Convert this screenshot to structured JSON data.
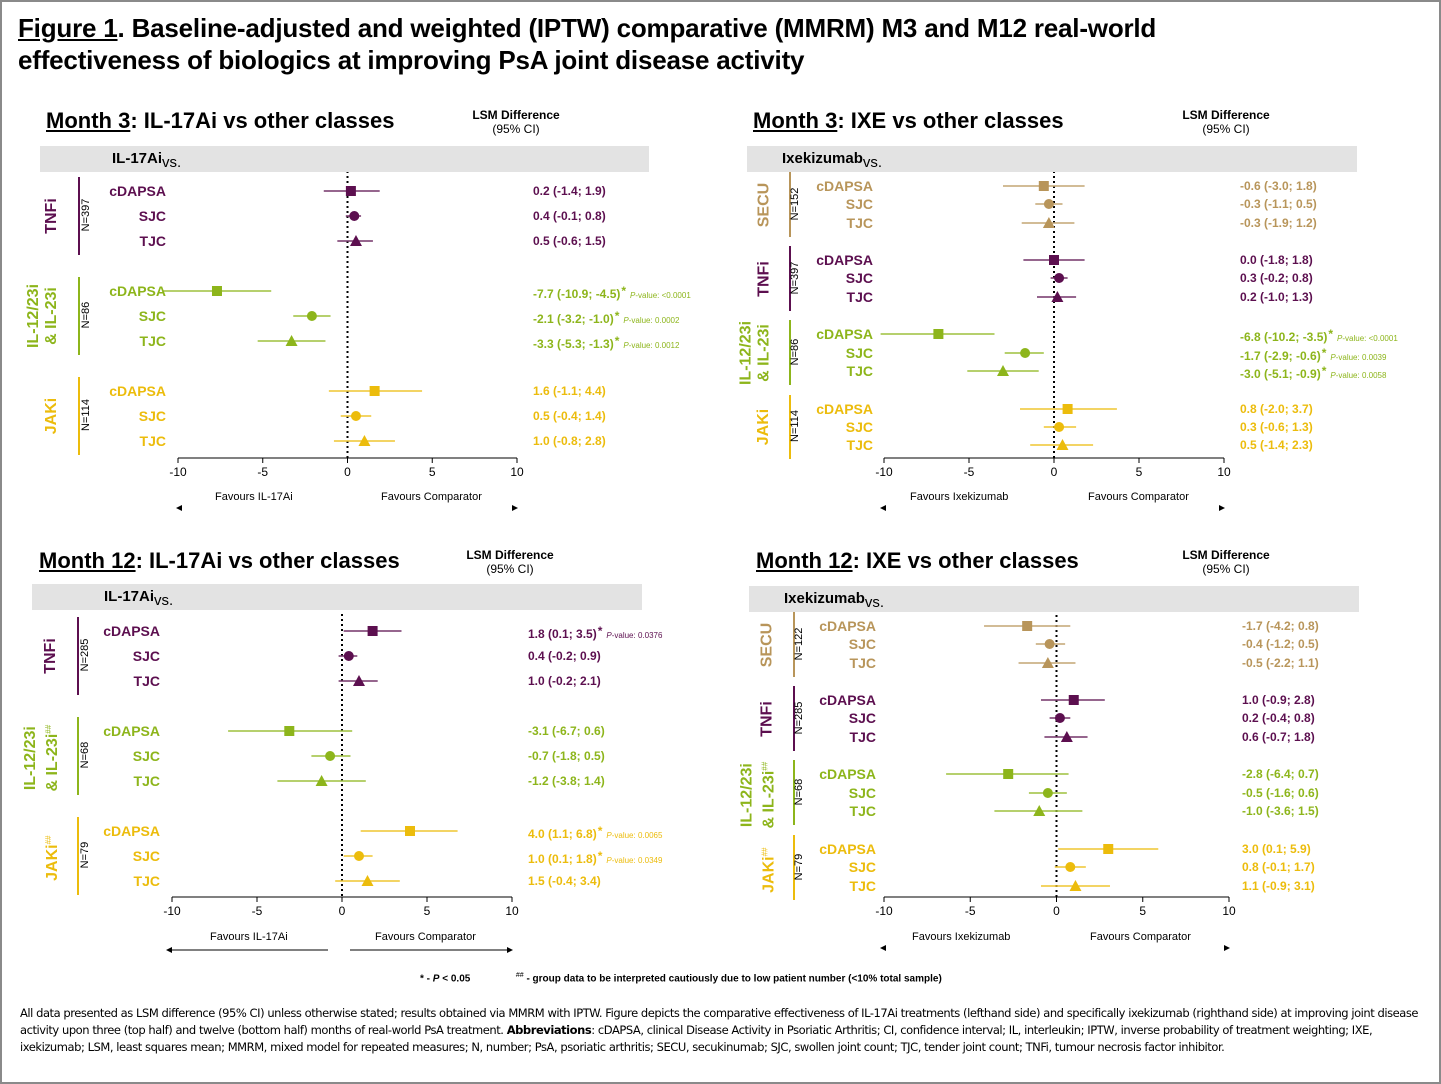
{
  "figure": {
    "label": "Figure 1",
    "title_line1": ". Baseline-adjusted and weighted (IPTW) comparative (MMRM) M3 and M12 real-world",
    "title_line2": "effectiveness of biologics at improving PsA joint disease activity"
  },
  "colors": {
    "TNFi": "#5c0f4f",
    "IL": "#8db51b",
    "JAKi": "#ecbc0c",
    "SECU": "#b8955a",
    "gray_bar": "#e3e3e3"
  },
  "lsm_header": {
    "line1": "LSM Difference",
    "line2": "(95% CI)"
  },
  "footnotes": {
    "significance": "* - ",
    "significance_p": "P",
    "significance_rest": " < 0.05",
    "caution": "##",
    "caution_text": " - group data to be interpreted cautiously due to low patient number (<10% total sample)"
  },
  "caption": {
    "part1": "All data presented as LSM difference (95% CI) unless otherwise stated; results obtained via MMRM with IPTW. Figure depicts the comparative effectiveness of IL-17Ai treatments (lefthand side) and specifically ixekizumab (righthand side) at improving joint disease activity upon three (top half) and twelve (bottom half) months of real-world PsA treatment. ",
    "abbrev_label": "Abbreviations",
    "part2": ": cDAPSA, clinical Disease Activity in Psoriatic Arthritis; CI, confidence interval; IL, interleukin; IPTW, inverse probability of treatment weighting; IXE, ixekizumab; LSM, least squares mean; MMRM, mixed model for repeated measures; N, number; PsA, psoriatic arthritis; SECU, secukinumab; SJC, swollen joint count; TJC, tender joint count; TNFi, tumour necrosis factor inhibitor."
  },
  "chart_data": [
    {
      "type": "forest",
      "title_month": "Month 3",
      "title_rest": ": IL-17Ai vs other classes",
      "reference_label_bold": "IL-17Ai",
      "reference_label_rest": " vs.",
      "xlim": [
        -10,
        10
      ],
      "xticks": [
        "-10",
        "-5",
        "0",
        "5",
        "10"
      ],
      "reference_line": 0,
      "favours_left": "Favours IL-17Ai",
      "favours_right": "Favours Comparator",
      "groups": [
        {
          "name": "TNFi",
          "n": "N=397",
          "color_key": "TNFi",
          "caution": false,
          "rows": [
            {
              "label": "cDAPSA",
              "marker": "square",
              "est": 0.2,
              "lo": -1.4,
              "hi": 1.9,
              "text": "0.2 (-1.4; 1.9)",
              "sig": false,
              "p": ""
            },
            {
              "label": "SJC",
              "marker": "circle",
              "est": 0.4,
              "lo": -0.1,
              "hi": 0.8,
              "text": "0.4 (-0.1; 0.8)",
              "sig": false,
              "p": ""
            },
            {
              "label": "TJC",
              "marker": "triangle",
              "est": 0.5,
              "lo": -0.6,
              "hi": 1.5,
              "text": "0.5 (-0.6; 1.5)",
              "sig": false,
              "p": ""
            }
          ]
        },
        {
          "name": "IL-12/23i\n& IL-23i",
          "n": "N=86",
          "color_key": "IL",
          "caution": false,
          "rows": [
            {
              "label": "cDAPSA",
              "marker": "square",
              "est": -7.7,
              "lo": -10.9,
              "hi": -4.5,
              "text": "-7.7 (-10.9; -4.5)",
              "sig": true,
              "p": "<0.0001"
            },
            {
              "label": "SJC",
              "marker": "circle",
              "est": -2.1,
              "lo": -3.2,
              "hi": -1.0,
              "text": "-2.1 (-3.2; -1.0)",
              "sig": true,
              "p": "0.0002"
            },
            {
              "label": "TJC",
              "marker": "triangle",
              "est": -3.3,
              "lo": -5.3,
              "hi": -1.3,
              "text": "-3.3 (-5.3; -1.3)",
              "sig": true,
              "p": "0.0012"
            }
          ]
        },
        {
          "name": "JAKi",
          "n": "N=114",
          "color_key": "JAKi",
          "caution": false,
          "rows": [
            {
              "label": "cDAPSA",
              "marker": "square",
              "est": 1.6,
              "lo": -1.1,
              "hi": 4.4,
              "text": "1.6 (-1.1; 4.4)",
              "sig": false,
              "p": ""
            },
            {
              "label": "SJC",
              "marker": "circle",
              "est": 0.5,
              "lo": -0.4,
              "hi": 1.4,
              "text": "0.5 (-0.4; 1.4)",
              "sig": false,
              "p": ""
            },
            {
              "label": "TJC",
              "marker": "triangle",
              "est": 1.0,
              "lo": -0.8,
              "hi": 2.8,
              "text": "1.0 (-0.8; 2.8)",
              "sig": false,
              "p": ""
            }
          ]
        }
      ]
    },
    {
      "type": "forest",
      "title_month": "Month 3",
      "title_rest": ": IXE vs other classes",
      "reference_label_bold": "Ixekizumab",
      "reference_label_rest": " vs.",
      "xlim": [
        -10,
        10
      ],
      "xticks": [
        "-10",
        "-5",
        "0",
        "5",
        "10"
      ],
      "reference_line": 0,
      "favours_left": "Favours Ixekizumab",
      "favours_right": "Favours Comparator",
      "groups": [
        {
          "name": "SECU",
          "n": "N=152",
          "color_key": "SECU",
          "caution": false,
          "rows": [
            {
              "label": "cDAPSA",
              "marker": "square",
              "est": -0.6,
              "lo": -3.0,
              "hi": 1.8,
              "text": "-0.6 (-3.0; 1.8)",
              "sig": false,
              "p": ""
            },
            {
              "label": "SJC",
              "marker": "circle",
              "est": -0.3,
              "lo": -1.1,
              "hi": 0.5,
              "text": "-0.3 (-1.1; 0.5)",
              "sig": false,
              "p": ""
            },
            {
              "label": "TJC",
              "marker": "triangle",
              "est": -0.3,
              "lo": -1.9,
              "hi": 1.2,
              "text": "-0.3 (-1.9; 1.2)",
              "sig": false,
              "p": ""
            }
          ]
        },
        {
          "name": "TNFi",
          "n": "N=397",
          "color_key": "TNFi",
          "caution": false,
          "rows": [
            {
              "label": "cDAPSA",
              "marker": "square",
              "est": 0.0,
              "lo": -1.8,
              "hi": 1.8,
              "text": "0.0 (-1.8; 1.8)",
              "sig": false,
              "p": ""
            },
            {
              "label": "SJC",
              "marker": "circle",
              "est": 0.3,
              "lo": -0.2,
              "hi": 0.8,
              "text": "0.3 (-0.2; 0.8)",
              "sig": false,
              "p": ""
            },
            {
              "label": "TJC",
              "marker": "triangle",
              "est": 0.2,
              "lo": -1.0,
              "hi": 1.3,
              "text": "0.2 (-1.0; 1.3)",
              "sig": false,
              "p": ""
            }
          ]
        },
        {
          "name": "IL-12/23i\n& IL-23i",
          "n": "N=86",
          "color_key": "IL",
          "caution": false,
          "rows": [
            {
              "label": "cDAPSA",
              "marker": "square",
              "est": -6.8,
              "lo": -10.2,
              "hi": -3.5,
              "text": "-6.8 (-10.2; -3.5)",
              "sig": true,
              "p": "<0.0001"
            },
            {
              "label": "SJC",
              "marker": "circle",
              "est": -1.7,
              "lo": -2.9,
              "hi": -0.6,
              "text": "-1.7 (-2.9; -0.6)",
              "sig": true,
              "p": "0.0039"
            },
            {
              "label": "TJC",
              "marker": "triangle",
              "est": -3.0,
              "lo": -5.1,
              "hi": -0.9,
              "text": "-3.0 (-5.1; -0.9)",
              "sig": true,
              "p": "0.0058"
            }
          ]
        },
        {
          "name": "JAKi",
          "n": "N=114",
          "color_key": "JAKi",
          "caution": false,
          "rows": [
            {
              "label": "cDAPSA",
              "marker": "square",
              "est": 0.8,
              "lo": -2.0,
              "hi": 3.7,
              "text": "0.8 (-2.0; 3.7)",
              "sig": false,
              "p": ""
            },
            {
              "label": "SJC",
              "marker": "circle",
              "est": 0.3,
              "lo": -0.6,
              "hi": 1.3,
              "text": "0.3 (-0.6; 1.3)",
              "sig": false,
              "p": ""
            },
            {
              "label": "TJC",
              "marker": "triangle",
              "est": 0.5,
              "lo": -1.4,
              "hi": 2.3,
              "text": "0.5 (-1.4; 2.3)",
              "sig": false,
              "p": ""
            }
          ]
        }
      ]
    },
    {
      "type": "forest",
      "title_month": "Month 12",
      "title_rest": ": IL-17Ai vs other classes",
      "reference_label_bold": "IL-17Ai",
      "reference_label_rest": " vs.",
      "xlim": [
        -10,
        10
      ],
      "xticks": [
        "-10",
        "-5",
        "0",
        "5",
        "10"
      ],
      "reference_line": 0,
      "favours_left": "Favours IL-17Ai",
      "favours_right": "Favours Comparator",
      "groups": [
        {
          "name": "TNFi",
          "n": "N=285",
          "color_key": "TNFi",
          "caution": false,
          "rows": [
            {
              "label": "cDAPSA",
              "marker": "square",
              "est": 1.8,
              "lo": 0.1,
              "hi": 3.5,
              "text": "1.8 (0.1; 3.5)",
              "sig": true,
              "p": "0.0376"
            },
            {
              "label": "SJC",
              "marker": "circle",
              "est": 0.4,
              "lo": -0.2,
              "hi": 0.9,
              "text": "0.4 (-0.2; 0.9)",
              "sig": false,
              "p": ""
            },
            {
              "label": "TJC",
              "marker": "triangle",
              "est": 1.0,
              "lo": -0.2,
              "hi": 2.1,
              "text": "1.0 (-0.2; 2.1)",
              "sig": false,
              "p": ""
            }
          ]
        },
        {
          "name": "IL-12/23i\n& IL-23i",
          "n": "N=68",
          "color_key": "IL",
          "caution": true,
          "rows": [
            {
              "label": "cDAPSA",
              "marker": "square",
              "est": -3.1,
              "lo": -6.7,
              "hi": 0.6,
              "text": "-3.1 (-6.7; 0.6)",
              "sig": false,
              "p": ""
            },
            {
              "label": "SJC",
              "marker": "circle",
              "est": -0.7,
              "lo": -1.8,
              "hi": 0.5,
              "text": "-0.7 (-1.8; 0.5)",
              "sig": false,
              "p": ""
            },
            {
              "label": "TJC",
              "marker": "triangle",
              "est": -1.2,
              "lo": -3.8,
              "hi": 1.4,
              "text": "-1.2 (-3.8; 1.4)",
              "sig": false,
              "p": ""
            }
          ]
        },
        {
          "name": "JAKi",
          "n": "N=79",
          "color_key": "JAKi",
          "caution": true,
          "rows": [
            {
              "label": "cDAPSA",
              "marker": "square",
              "est": 4.0,
              "lo": 1.1,
              "hi": 6.8,
              "text": "4.0 (1.1; 6.8)",
              "sig": true,
              "p": "0.0065"
            },
            {
              "label": "SJC",
              "marker": "circle",
              "est": 1.0,
              "lo": 0.1,
              "hi": 1.8,
              "text": "1.0 (0.1; 1.8)",
              "sig": true,
              "p": "0.0349"
            },
            {
              "label": "TJC",
              "marker": "triangle",
              "est": 1.5,
              "lo": -0.4,
              "hi": 3.4,
              "text": "1.5 (-0.4; 3.4)",
              "sig": false,
              "p": ""
            }
          ]
        }
      ]
    },
    {
      "type": "forest",
      "title_month": "Month 12",
      "title_rest": ": IXE vs other classes",
      "reference_label_bold": "Ixekizumab",
      "reference_label_rest": " vs.",
      "xlim": [
        -10,
        10
      ],
      "xticks": [
        "-10",
        "-5",
        "0",
        "5",
        "10"
      ],
      "reference_line": 0,
      "favours_left": "Favours Ixekizumab",
      "favours_right": "Favours Comparator",
      "groups": [
        {
          "name": "SECU",
          "n": "N=122",
          "color_key": "SECU",
          "caution": false,
          "rows": [
            {
              "label": "cDAPSA",
              "marker": "square",
              "est": -1.7,
              "lo": -4.2,
              "hi": 0.8,
              "text": "-1.7 (-4.2; 0.8)",
              "sig": false,
              "p": ""
            },
            {
              "label": "SJC",
              "marker": "circle",
              "est": -0.4,
              "lo": -1.2,
              "hi": 0.5,
              "text": "-0.4 (-1.2; 0.5)",
              "sig": false,
              "p": ""
            },
            {
              "label": "TJC",
              "marker": "triangle",
              "est": -0.5,
              "lo": -2.2,
              "hi": 1.1,
              "text": "-0.5 (-2.2; 1.1)",
              "sig": false,
              "p": ""
            }
          ]
        },
        {
          "name": "TNFi",
          "n": "N=285",
          "color_key": "TNFi",
          "caution": false,
          "rows": [
            {
              "label": "cDAPSA",
              "marker": "square",
              "est": 1.0,
              "lo": -0.9,
              "hi": 2.8,
              "text": "1.0 (-0.9; 2.8)",
              "sig": false,
              "p": ""
            },
            {
              "label": "SJC",
              "marker": "circle",
              "est": 0.2,
              "lo": -0.4,
              "hi": 0.8,
              "text": "0.2 (-0.4; 0.8)",
              "sig": false,
              "p": ""
            },
            {
              "label": "TJC",
              "marker": "triangle",
              "est": 0.6,
              "lo": -0.7,
              "hi": 1.8,
              "text": "0.6 (-0.7; 1.8)",
              "sig": false,
              "p": ""
            }
          ]
        },
        {
          "name": "IL-12/23i\n& IL-23i",
          "n": "N=68",
          "color_key": "IL",
          "caution": true,
          "rows": [
            {
              "label": "cDAPSA",
              "marker": "square",
              "est": -2.8,
              "lo": -6.4,
              "hi": 0.7,
              "text": "-2.8 (-6.4; 0.7)",
              "sig": false,
              "p": ""
            },
            {
              "label": "SJC",
              "marker": "circle",
              "est": -0.5,
              "lo": -1.6,
              "hi": 0.6,
              "text": "-0.5 (-1.6; 0.6)",
              "sig": false,
              "p": ""
            },
            {
              "label": "TJC",
              "marker": "triangle",
              "est": -1.0,
              "lo": -3.6,
              "hi": 1.5,
              "text": "-1.0 (-3.6; 1.5)",
              "sig": false,
              "p": ""
            }
          ]
        },
        {
          "name": "JAKi",
          "n": "N=79",
          "color_key": "JAKi",
          "caution": true,
          "rows": [
            {
              "label": "cDAPSA",
              "marker": "square",
              "est": 3.0,
              "lo": 0.1,
              "hi": 5.9,
              "text": "3.0 (0.1; 5.9)",
              "sig": false,
              "p": ""
            },
            {
              "label": "SJC",
              "marker": "circle",
              "est": 0.8,
              "lo": -0.1,
              "hi": 1.7,
              "text": "0.8 (-0.1; 1.7)",
              "sig": false,
              "p": ""
            },
            {
              "label": "TJC",
              "marker": "triangle",
              "est": 1.1,
              "lo": -0.9,
              "hi": 3.1,
              "text": "1.1 (-0.9; 3.1)",
              "sig": false,
              "p": ""
            }
          ]
        }
      ]
    }
  ],
  "labels": {
    "p_value_prefix_italic": "P",
    "p_value_prefix_rest": "-value: ",
    "sig_marker": "*",
    "caution_marker": "##"
  }
}
